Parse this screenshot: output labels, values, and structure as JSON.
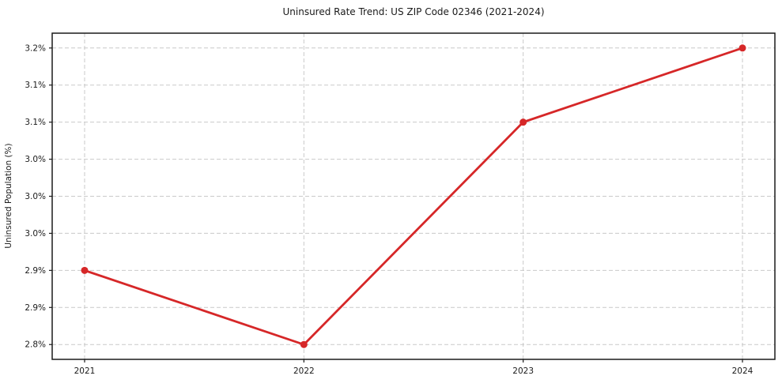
{
  "chart_data": {
    "type": "line",
    "title": "Uninsured Rate Trend: US ZIP Code 02346 (2021-2024)",
    "xlabel": "",
    "ylabel": "Uninsured Population (%)",
    "categories": [
      "2021",
      "2022",
      "2023",
      "2024"
    ],
    "values": [
      2.9,
      2.8,
      3.1,
      3.2
    ],
    "ylim": [
      2.78,
      3.22
    ],
    "yticks": [
      2.8,
      2.85,
      2.9,
      2.95,
      3.0,
      3.05,
      3.1,
      3.15,
      3.2
    ],
    "ytick_labels": [
      "2.8%",
      "2.9%",
      "2.9%",
      "3.0%",
      "3.0%",
      "3.0%",
      "3.1%",
      "3.1%",
      "3.2%"
    ],
    "grid": true,
    "grid_style": "dashed",
    "legend": "none",
    "marker": "circle",
    "colors": {
      "line": "#d62728",
      "marker": "#d62728",
      "grid": "#c9c9c9",
      "axis": "#1a1a1a",
      "text": "#1a1a1a",
      "background": "#ffffff"
    }
  }
}
